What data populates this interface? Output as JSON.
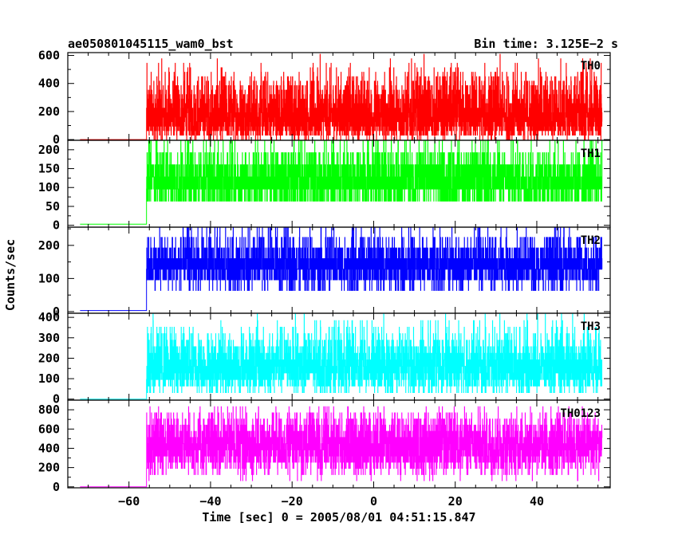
{
  "chart_data": {
    "type": "line",
    "title_left": "ae050801045115_wam0_bst",
    "title_right": "Bin time: 3.125E−2 s",
    "xlabel": "Time [sec] 0 = 2005/08/01 04:51:15.847",
    "ylabel": "Counts/sec",
    "xlim": [
      -75,
      58
    ],
    "x_ticks": [
      -60,
      -40,
      -20,
      0,
      20,
      40
    ],
    "x_tick_labels": [
      "−60",
      "−40",
      "−20",
      "0",
      "20",
      "40"
    ],
    "data_range": [
      -72,
      56
    ],
    "onset": -55.7,
    "panels": [
      {
        "name": "TH0",
        "color": "#ff0000",
        "ylim": [
          -5,
          620
        ],
        "yticks": [
          0,
          200,
          400,
          600
        ],
        "pre_level": 0,
        "levels": [
          [
            0,
            0.03
          ],
          [
            32,
            0.1
          ],
          [
            64,
            0.12
          ],
          [
            96,
            0.11
          ],
          [
            128,
            0.11
          ],
          [
            160,
            0.1
          ],
          [
            192,
            0.09
          ],
          [
            224,
            0.08
          ],
          [
            256,
            0.07
          ],
          [
            288,
            0.06
          ],
          [
            320,
            0.05
          ],
          [
            352,
            0.04
          ],
          [
            384,
            0.035
          ],
          [
            416,
            0.025
          ],
          [
            448,
            0.02
          ],
          [
            480,
            0.015
          ],
          [
            512,
            0.01
          ],
          [
            544,
            0.006
          ],
          [
            576,
            0.003
          ],
          [
            608,
            0.001
          ]
        ]
      },
      {
        "name": "TH1",
        "color": "#00ff00",
        "ylim": [
          -5,
          225
        ],
        "yticks": [
          0,
          50,
          100,
          150,
          200
        ],
        "pre_level": 3,
        "levels": [
          [
            64,
            0.15
          ],
          [
            96,
            0.3
          ],
          [
            128,
            0.25
          ],
          [
            160,
            0.2
          ],
          [
            192,
            0.07
          ],
          [
            224,
            0.03
          ]
        ]
      },
      {
        "name": "TH2",
        "color": "#0000ff",
        "ylim": [
          -5,
          255
        ],
        "yticks": [
          0,
          100,
          200
        ],
        "pre_level": 3,
        "levels": [
          [
            64,
            0.05
          ],
          [
            96,
            0.18
          ],
          [
            128,
            0.32
          ],
          [
            160,
            0.25
          ],
          [
            192,
            0.13
          ],
          [
            224,
            0.05
          ],
          [
            256,
            0.02
          ]
        ]
      },
      {
        "name": "TH3",
        "color": "#00ffff",
        "ylim": [
          -5,
          420
        ],
        "yticks": [
          0,
          100,
          200,
          300,
          400
        ],
        "pre_level": 0,
        "levels": [
          [
            32,
            0.04
          ],
          [
            64,
            0.1
          ],
          [
            96,
            0.14
          ],
          [
            128,
            0.16
          ],
          [
            160,
            0.15
          ],
          [
            192,
            0.13
          ],
          [
            224,
            0.1
          ],
          [
            256,
            0.07
          ],
          [
            288,
            0.05
          ],
          [
            320,
            0.03
          ],
          [
            352,
            0.02
          ],
          [
            384,
            0.008
          ],
          [
            416,
            0.004
          ]
        ]
      },
      {
        "name": "TH0123",
        "color": "#ff00ff",
        "ylim": [
          -10,
          900
        ],
        "yticks": [
          0,
          200,
          400,
          600,
          800
        ],
        "pre_level": 0,
        "levels": [
          [
            64,
            0.01
          ],
          [
            128,
            0.03
          ],
          [
            192,
            0.06
          ],
          [
            256,
            0.09
          ],
          [
            320,
            0.11
          ],
          [
            384,
            0.13
          ],
          [
            448,
            0.13
          ],
          [
            512,
            0.12
          ],
          [
            576,
            0.1
          ],
          [
            640,
            0.08
          ],
          [
            704,
            0.05
          ],
          [
            768,
            0.03
          ],
          [
            832,
            0.015
          ]
        ]
      }
    ]
  }
}
